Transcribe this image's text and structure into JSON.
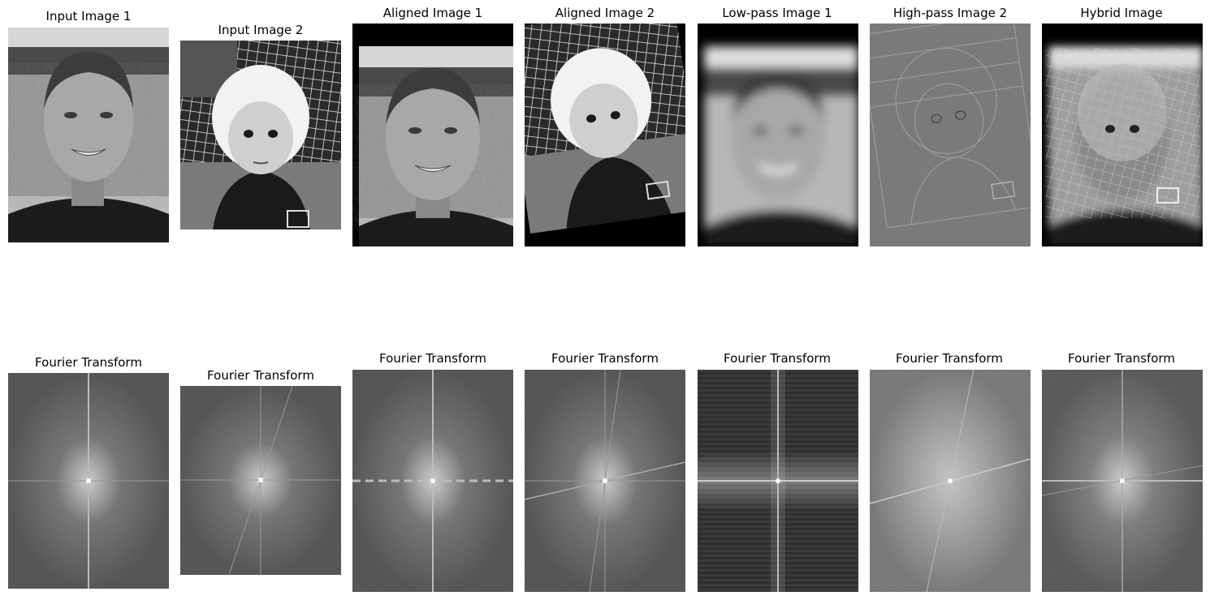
{
  "top_row": [
    {
      "title": "Input Image 1"
    },
    {
      "title": "Input Image 2"
    },
    {
      "title": "Aligned Image 1"
    },
    {
      "title": "Aligned Image 2"
    },
    {
      "title": "Low-pass Image 1"
    },
    {
      "title": "High-pass Image 2"
    },
    {
      "title": "Hybrid Image"
    }
  ],
  "bottom_row": [
    {
      "title": "Fourier Transform"
    },
    {
      "title": "Fourier Transform"
    },
    {
      "title": "Fourier Transform"
    },
    {
      "title": "Fourier Transform"
    },
    {
      "title": "Fourier Transform"
    },
    {
      "title": "Fourier Transform"
    },
    {
      "title": "Fourier Transform"
    }
  ]
}
